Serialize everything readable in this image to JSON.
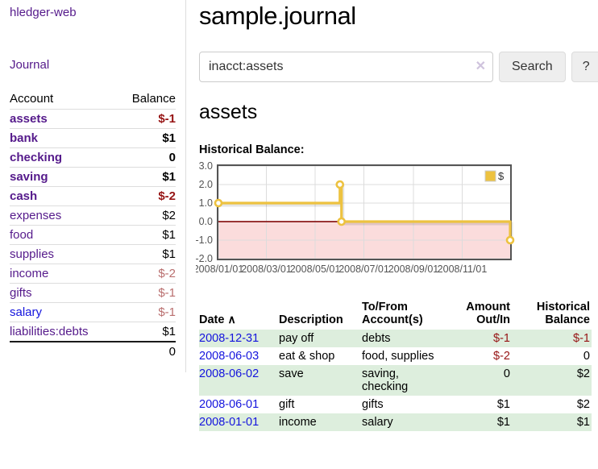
{
  "app": {
    "title": "hledger-web"
  },
  "sidebar": {
    "journal_label": "Journal",
    "accounts_table": {
      "account_header": "Account",
      "balance_header": "Balance",
      "rows": [
        {
          "label": "assets",
          "balance": "$-1",
          "indent": 0,
          "strong": true,
          "link": "visited",
          "amount_class": "amt-neg"
        },
        {
          "label": "bank",
          "balance": "$1",
          "indent": 1,
          "strong": true,
          "link": "visited",
          "amount_class": ""
        },
        {
          "label": "checking",
          "balance": "0",
          "indent": 2,
          "strong": true,
          "link": "visited",
          "amount_class": ""
        },
        {
          "label": "saving",
          "balance": "$1",
          "indent": 2,
          "strong": true,
          "link": "visited",
          "amount_class": ""
        },
        {
          "label": "cash",
          "balance": "$-2",
          "indent": 1,
          "strong": true,
          "link": "visited",
          "amount_class": "amt-neg"
        },
        {
          "label": "expenses",
          "balance": "$2",
          "indent": 0,
          "strong": false,
          "link": "visited",
          "amount_class": ""
        },
        {
          "label": "food",
          "balance": "$1",
          "indent": 1,
          "strong": false,
          "link": "visited",
          "amount_class": ""
        },
        {
          "label": "supplies",
          "balance": "$1",
          "indent": 1,
          "strong": false,
          "link": "visited",
          "amount_class": ""
        },
        {
          "label": "income",
          "balance": "$-2",
          "indent": 0,
          "strong": false,
          "link": "visited",
          "amount_class": "amt-soft"
        },
        {
          "label": "gifts",
          "balance": "$-1",
          "indent": 1,
          "strong": false,
          "link": "visited",
          "amount_class": "amt-soft"
        },
        {
          "label": "salary",
          "balance": "$-1",
          "indent": 1,
          "strong": false,
          "link": "new",
          "amount_class": "amt-soft"
        },
        {
          "label": "liabilities:debts",
          "balance": "$1",
          "indent": 0,
          "strong": false,
          "link": "visited",
          "amount_class": ""
        }
      ],
      "total": "0"
    }
  },
  "main": {
    "title": "sample.journal",
    "search": {
      "value": "inacct:assets",
      "clear_icon": "✕",
      "search_button": "Search",
      "help_button": "?"
    },
    "account_heading": "assets",
    "chart_heading": "Historical Balance:"
  },
  "chart_data": {
    "type": "line",
    "step": true,
    "title": "Historical Balance",
    "series": [
      {
        "name": "$",
        "color": "#edc240",
        "points": [
          [
            "2008-01-01",
            1
          ],
          [
            "2008-06-01",
            2
          ],
          [
            "2008-06-03",
            0
          ],
          [
            "2008-12-31",
            -1
          ]
        ]
      }
    ],
    "x_range": [
      "2008-01-01",
      "2008-12-31"
    ],
    "ylim": [
      -2,
      3
    ],
    "x_tick_labels": [
      "2008/01/01",
      "2008/03/01",
      "2008/05/01",
      "2008/07/01",
      "2008/09/01",
      "2008/11/01"
    ],
    "y_tick_labels": [
      "3.0",
      "2.0",
      "1.0",
      "0.0",
      "-1.0",
      "-2.0"
    ],
    "legend": {
      "label": "$",
      "position": "top-right",
      "box_color": "#edc240"
    },
    "grid": true,
    "grid_color": "#dcdcdc",
    "border_color": "#545454",
    "axis_text_color": "#545454",
    "negative_area_color": "#fbdcdc",
    "zero_line_color": "#8b1a1a"
  },
  "register": {
    "headers": {
      "date": "Date",
      "sort_icon": "∧",
      "description": "Description",
      "accounts": "To/From Account(s)",
      "amount": "Amount Out/In",
      "balance": "Historical Balance"
    },
    "rows": [
      {
        "date": "2008-12-31",
        "description": "pay off",
        "accounts": "debts",
        "amount": "$-1",
        "balance": "$-1",
        "amount_class": "amt-neg",
        "balance_class": "amt-neg",
        "stripe": true
      },
      {
        "date": "2008-06-03",
        "description": "eat & shop",
        "accounts": "food, supplies",
        "amount": "$-2",
        "balance": "0",
        "amount_class": "amt-neg",
        "balance_class": "",
        "stripe": false
      },
      {
        "date": "2008-06-02",
        "description": "save",
        "accounts": "saving, checking",
        "amount": "0",
        "balance": "$2",
        "amount_class": "",
        "balance_class": "",
        "stripe": true
      },
      {
        "date": "2008-06-01",
        "description": "gift",
        "accounts": "gifts",
        "amount": "$1",
        "balance": "$2",
        "amount_class": "",
        "balance_class": "",
        "stripe": false
      },
      {
        "date": "2008-01-01",
        "description": "income",
        "accounts": "salary",
        "amount": "$1",
        "balance": "$1",
        "amount_class": "",
        "balance_class": "",
        "stripe": true
      }
    ]
  }
}
